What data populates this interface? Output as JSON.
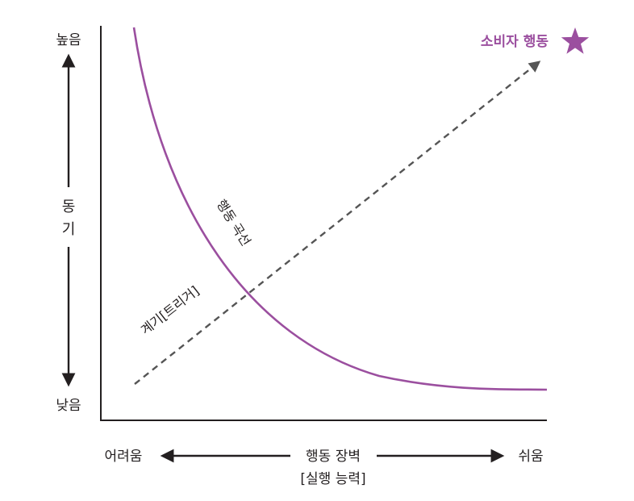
{
  "y_axis": {
    "top_label": "높음",
    "bottom_label": "낮음",
    "title_line1": "동",
    "title_line2": "기"
  },
  "x_axis": {
    "left_label": "어려움",
    "right_label": "쉬움",
    "title": "행동 장벽",
    "subtitle": "[실행 능력]"
  },
  "curve_label": "행동 곡선",
  "trigger_label": "계기[트리거]",
  "goal_label": "소비자 행동",
  "colors": {
    "accent": "#9b4f9f",
    "ink": "#231f20",
    "dashed": "#555555"
  }
}
